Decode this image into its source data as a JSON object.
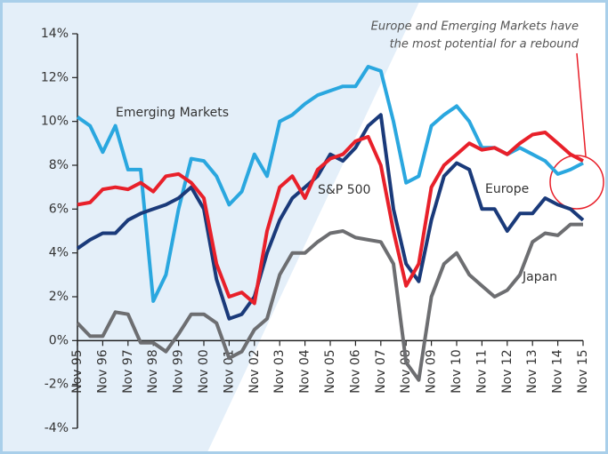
{
  "chart_data": {
    "type": "line",
    "annotation": [
      "Europe and Emerging Markets have",
      "the most potential for a rebound"
    ],
    "categories": [
      "Nov 95",
      null,
      "Nov 96",
      null,
      "Nov 97",
      null,
      "Nov 98",
      null,
      "Nov 99",
      null,
      "Nov 00",
      null,
      "Nov 01",
      null,
      "Nov 02",
      null,
      "Nov 03",
      null,
      "Nov 04",
      null,
      "Nov 05",
      null,
      "Nov 06",
      null,
      "Nov 07",
      null,
      "Nov 08",
      null,
      "Nov 09",
      null,
      "Nov 10",
      null,
      "Nov 11",
      null,
      "Nov 12",
      null,
      "Nov 13",
      null,
      "Nov 14",
      null,
      "Nov 15"
    ],
    "series": [
      {
        "name": "Emerging Markets",
        "color": "#2aa7df",
        "values": [
          10.2,
          9.8,
          8.6,
          9.8,
          7.8,
          7.8,
          1.8,
          3.0,
          6.0,
          8.3,
          8.2,
          7.5,
          6.2,
          6.8,
          8.5,
          7.5,
          10.0,
          10.3,
          10.8,
          11.2,
          11.4,
          11.6,
          11.6,
          12.5,
          12.3,
          10.0,
          7.2,
          7.5,
          9.8,
          10.3,
          10.7,
          10.0,
          8.8,
          8.8,
          8.5,
          8.8,
          8.5,
          8.2,
          7.6,
          7.8,
          8.1
        ]
      },
      {
        "name": "S&P 500",
        "color": "#e8202a",
        "values": [
          6.2,
          6.3,
          6.9,
          7.0,
          6.9,
          7.2,
          6.8,
          7.5,
          7.6,
          7.2,
          6.5,
          3.5,
          2.0,
          2.2,
          1.7,
          5.0,
          7.0,
          7.5,
          6.5,
          7.8,
          8.3,
          8.5,
          9.1,
          9.3,
          8.0,
          5.0,
          2.5,
          3.5,
          7.0,
          8.0,
          8.5,
          9.0,
          8.7,
          8.8,
          8.5,
          9.0,
          9.4,
          9.5,
          9.0,
          8.5,
          8.2
        ]
      },
      {
        "name": "Europe",
        "color": "#1a3a7a",
        "values": [
          4.2,
          4.6,
          4.9,
          4.9,
          5.5,
          5.8,
          6.0,
          6.2,
          6.5,
          7.0,
          6.0,
          2.8,
          1.0,
          1.2,
          2.0,
          4.0,
          5.5,
          6.5,
          7.0,
          7.5,
          8.5,
          8.2,
          8.8,
          9.8,
          10.3,
          6.0,
          3.5,
          2.7,
          5.5,
          7.5,
          8.1,
          7.8,
          6.0,
          6.0,
          5.0,
          5.8,
          5.8,
          6.5,
          6.2,
          6.0,
          5.5
        ]
      },
      {
        "name": "Japan",
        "color": "#6d6e71",
        "values": [
          0.8,
          0.2,
          0.2,
          1.3,
          1.2,
          -0.1,
          -0.1,
          -0.5,
          0.3,
          1.2,
          1.2,
          0.8,
          -0.8,
          -0.5,
          0.5,
          1.0,
          3.0,
          4.0,
          4.0,
          4.5,
          4.9,
          5.0,
          4.7,
          4.6,
          4.5,
          3.5,
          -1.0,
          -1.8,
          2.0,
          3.5,
          4.0,
          3.0,
          2.5,
          2.0,
          2.3,
          3.0,
          4.5,
          4.9,
          4.8,
          5.3,
          5.3
        ]
      }
    ],
    "ylim": [
      -4,
      14
    ],
    "yticks": [
      {
        "value": -4,
        "label": "-4%"
      },
      {
        "value": -2,
        "label": "-2%"
      },
      {
        "value": 0,
        "label": "0%"
      },
      {
        "value": 2,
        "label": "2%"
      },
      {
        "value": 4,
        "label": "4%"
      },
      {
        "value": 6,
        "label": "6%"
      },
      {
        "value": 8,
        "label": "8%"
      },
      {
        "value": 10,
        "label": "10%"
      },
      {
        "value": 12,
        "label": "12%"
      },
      {
        "value": 14,
        "label": "14%"
      }
    ]
  }
}
